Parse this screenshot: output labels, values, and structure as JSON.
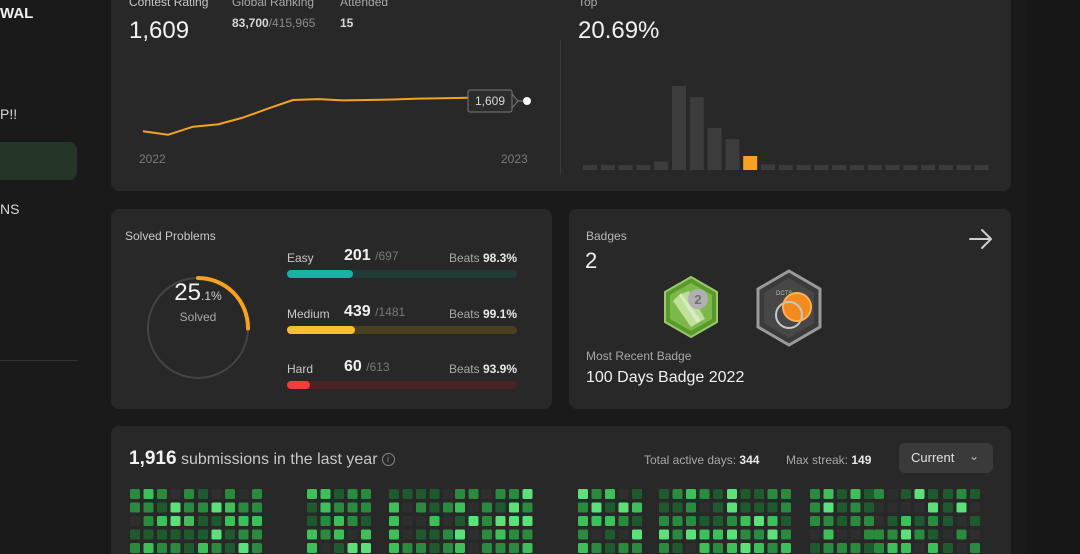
{
  "sidebar": {
    "name": "WAL",
    "item_1": "P!!",
    "item_2": "NS"
  },
  "rating": {
    "label": "Contest Rating",
    "value": "1,609",
    "global_label": "Global Ranking",
    "global_rank": "83,700",
    "global_total": "/415,965",
    "attended_label": "Attended",
    "attended_value": "15",
    "chart_start": "2022",
    "chart_end": "2023",
    "tooltip": "1,609",
    "top_label": "Top",
    "top_value": "20.69%",
    "trend": [
      1535,
      1527,
      1545,
      1550,
      1565,
      1585,
      1604,
      1606,
      1603,
      1604,
      1605,
      1607,
      1608,
      1609
    ],
    "distribution": [
      2,
      2,
      2,
      2,
      6,
      60,
      52,
      30,
      22,
      10,
      4,
      3,
      2,
      2,
      2,
      2,
      2,
      2,
      2,
      2,
      2,
      2,
      2
    ],
    "highlight_index": 9
  },
  "solved": {
    "title": "Solved Problems",
    "percent": "25",
    "percent_dec": ".1%",
    "percent_label": "Solved",
    "ring_fraction": 0.251,
    "easy": {
      "name": "Easy",
      "count": "201",
      "total": "/697",
      "beats_label": "Beats",
      "beats": "98.3%",
      "fraction": 0.288
    },
    "medium": {
      "name": "Medium",
      "count": "439",
      "total": "/1481",
      "beats_label": "Beats",
      "beats": "99.1%",
      "fraction": 0.296
    },
    "hard": {
      "name": "Hard",
      "count": "60",
      "total": "/613",
      "beats_label": "Beats",
      "beats": "93.9%",
      "fraction": 0.098
    }
  },
  "badges": {
    "title": "Badges",
    "count": "2",
    "recent_label": "Most Recent Badge",
    "recent_name": "100 Days Badge 2022",
    "badge2_text": "DCTS",
    "colors": {
      "easy": "#19b2a6",
      "medium": "#f5c22e",
      "hard": "#f03d3d",
      "accent": "#f7a21e"
    }
  },
  "submissions": {
    "count": "1,916",
    "text": "submissions in the last year",
    "active_label": "Total active days:",
    "active_value": "344",
    "streak_label": "Max streak:",
    "streak_value": "149",
    "select_value": "Current"
  }
}
